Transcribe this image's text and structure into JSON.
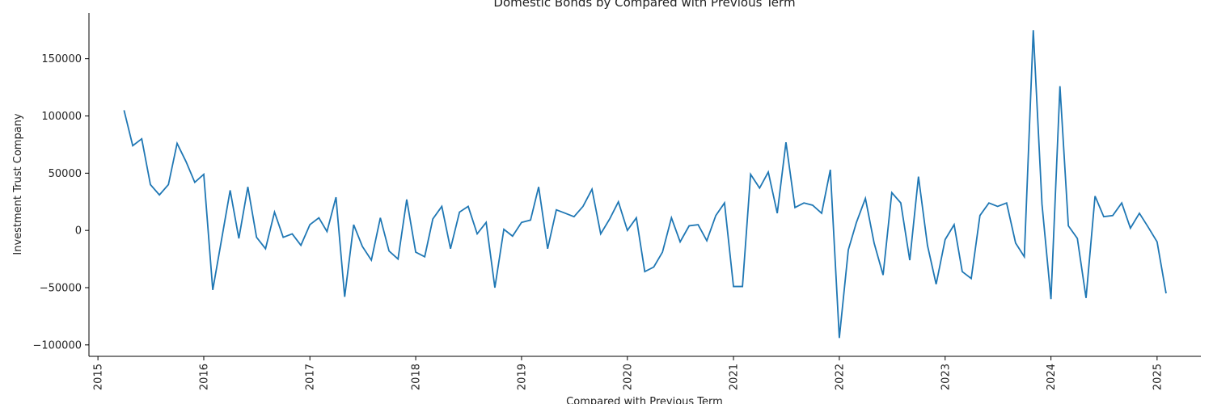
{
  "chart_data": {
    "type": "line",
    "title": "Domestic Bonds by Compared with Previous Term",
    "xlabel": "Compared with Previous Term",
    "ylabel": "Investment Trust Company",
    "x_type": "date",
    "xlim": [
      "2014-12-01",
      "2025-06-01"
    ],
    "ylim": [
      -110000,
      190000
    ],
    "x_ticks": [
      "2015",
      "2016",
      "2017",
      "2018",
      "2019",
      "2020",
      "2021",
      "2022",
      "2023",
      "2024",
      "2025"
    ],
    "y_ticks": [
      -100000,
      -50000,
      0,
      50000,
      100000,
      150000
    ],
    "y_tick_labels": [
      "−100000",
      "−50000",
      "0",
      "50000",
      "100000",
      "150000"
    ],
    "grid": false,
    "color": "#1f77b4",
    "series": [
      {
        "x": [
          "2015-04",
          "2015-05",
          "2015-06",
          "2015-07",
          "2015-08",
          "2015-09",
          "2015-10",
          "2015-11",
          "2015-12",
          "2016-01",
          "2016-02",
          "2016-03",
          "2016-04",
          "2016-05",
          "2016-06",
          "2016-07",
          "2016-08",
          "2016-09",
          "2016-10",
          "2016-11",
          "2016-12",
          "2017-01",
          "2017-02",
          "2017-03",
          "2017-04",
          "2017-05",
          "2017-06",
          "2017-07",
          "2017-08",
          "2017-09",
          "2017-10",
          "2017-11",
          "2017-12",
          "2018-01",
          "2018-02",
          "2018-03",
          "2018-04",
          "2018-05",
          "2018-06",
          "2018-07",
          "2018-08",
          "2018-09",
          "2018-10",
          "2018-11",
          "2018-12",
          "2019-01",
          "2019-02",
          "2019-03",
          "2019-04",
          "2019-05",
          "2019-06",
          "2019-07",
          "2019-08",
          "2019-09",
          "2019-10",
          "2019-11",
          "2019-12",
          "2020-01",
          "2020-02",
          "2020-03",
          "2020-04",
          "2020-05",
          "2020-06",
          "2020-07",
          "2020-08",
          "2020-09",
          "2020-10",
          "2020-11",
          "2020-12",
          "2021-01",
          "2021-02",
          "2021-03",
          "2021-04",
          "2021-05",
          "2021-06",
          "2021-07",
          "2021-08",
          "2021-09",
          "2021-10",
          "2021-11",
          "2021-12",
          "2022-01",
          "2022-02",
          "2022-03",
          "2022-04",
          "2022-05",
          "2022-06",
          "2022-07",
          "2022-08",
          "2022-09",
          "2022-10",
          "2022-11",
          "2022-12",
          "2023-01",
          "2023-02",
          "2023-03",
          "2023-04",
          "2023-05",
          "2023-06",
          "2023-07",
          "2023-08",
          "2023-09",
          "2023-10",
          "2023-11",
          "2023-12",
          "2024-01",
          "2024-02",
          "2024-03",
          "2024-04",
          "2024-05",
          "2024-06",
          "2024-07",
          "2024-08",
          "2024-09",
          "2024-10",
          "2024-11",
          "2024-12",
          "2025-01",
          "2025-02"
        ],
        "values": [
          105000,
          74000,
          80000,
          40000,
          31000,
          40000,
          76000,
          60000,
          42000,
          49000,
          -52000,
          -10000,
          35000,
          -7000,
          38000,
          -6000,
          -16000,
          16000,
          -6000,
          -3000,
          -13000,
          5000,
          11000,
          -1000,
          29000,
          -58000,
          5000,
          -14000,
          -26000,
          11000,
          -18000,
          -25000,
          27000,
          -19000,
          -23000,
          10000,
          21000,
          -16000,
          16000,
          21000,
          -3000,
          7000,
          -50000,
          1000,
          -5000,
          7000,
          9000,
          38000,
          -16000,
          18000,
          15000,
          12000,
          21000,
          36000,
          -3000,
          10000,
          25000,
          0,
          11000,
          -36000,
          -32000,
          -19000,
          11000,
          -10000,
          4000,
          5000,
          -9000,
          13000,
          24000,
          -49000,
          -49000,
          49000,
          37000,
          51000,
          15000,
          77000,
          20000,
          24000,
          22000,
          15000,
          53000,
          -94000,
          -17000,
          7000,
          28000,
          -11000,
          -39000,
          33000,
          24000,
          -26000,
          47000,
          -13000,
          -47000,
          -8000,
          5000,
          -36000,
          -42000,
          13000,
          24000,
          21000,
          24000,
          -11000,
          -23000,
          175000,
          23000,
          -60000,
          126000,
          4000,
          -7000,
          -59000,
          30000,
          12000,
          13000,
          24000,
          2000,
          15000,
          3000,
          -10000,
          -55000
        ]
      }
    ]
  }
}
